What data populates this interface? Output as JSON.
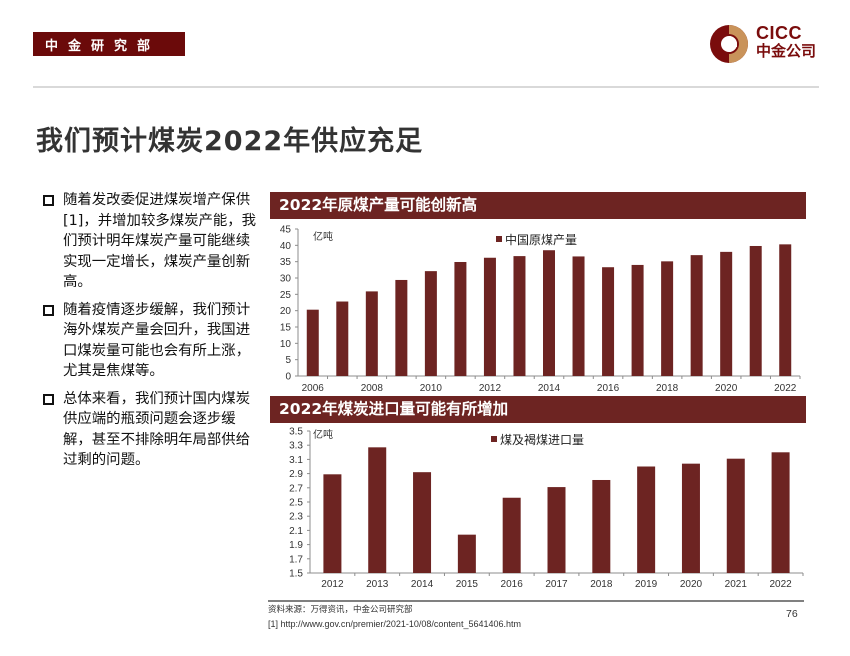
{
  "header": {
    "badge": "中金研究部",
    "logo_en": "CICC",
    "logo_cn": "中金公司"
  },
  "title": "我们预计煤炭2022年供应充足",
  "bullets": [
    "随着发改委促进煤炭增产保供[1]，并增加较多煤炭产能，我们预计明年煤炭产量可能继续实现一定增长，煤炭产量创新高。",
    "随着疫情逐步缓解，我们预计海外煤炭产量会回升，我国进口煤炭量可能也会有所上涨，尤其是焦煤等。",
    "总体来看，我们预计国内煤炭供应端的瓶颈问题会逐步缓解，甚至不排除明年局部供给过剩的问题。"
  ],
  "colors": {
    "brand": "#6b0a0a",
    "bar": "#6d2422",
    "header_bar": "#6d2422"
  },
  "chart_data": [
    {
      "type": "bar",
      "title": "2022年原煤产量可能创新高",
      "unit_label": "亿吨",
      "legend": "中国原煤产量",
      "legend_position": "top-center",
      "categories": [
        "2006",
        "2007",
        "2008",
        "2009",
        "2010",
        "2011",
        "2012",
        "2013",
        "2014",
        "2015",
        "2016",
        "2017",
        "2018",
        "2019",
        "2020",
        "2021",
        "2022"
      ],
      "x_tick_labels": [
        "2006",
        "2008",
        "2010",
        "2012",
        "2014",
        "2016",
        "2018",
        "2020",
        "2022"
      ],
      "values": [
        20.3,
        22.8,
        25.9,
        29.4,
        32.1,
        34.9,
        36.2,
        36.7,
        38.5,
        36.6,
        33.3,
        34.0,
        35.1,
        37.0,
        38.0,
        39.8,
        40.3
      ],
      "ylim": [
        0,
        45
      ],
      "yticks": [
        0,
        5,
        10,
        15,
        20,
        25,
        30,
        35,
        40,
        45
      ],
      "grid": false
    },
    {
      "type": "bar",
      "title": "2022年煤炭进口量可能有所增加",
      "unit_label": "亿吨",
      "legend": "煤及褐煤进口量",
      "legend_position": "top-center",
      "categories": [
        "2012",
        "2013",
        "2014",
        "2015",
        "2016",
        "2017",
        "2018",
        "2019",
        "2020",
        "2021",
        "2022"
      ],
      "x_tick_labels": [
        "2012",
        "2013",
        "2014",
        "2015",
        "2016",
        "2017",
        "2018",
        "2019",
        "2020",
        "2021",
        "2022"
      ],
      "values": [
        2.89,
        3.27,
        2.92,
        2.04,
        2.56,
        2.71,
        2.81,
        3.0,
        3.04,
        3.11,
        3.2
      ],
      "ylim": [
        1.5,
        3.5
      ],
      "yticks": [
        "1.5",
        "1.7",
        "1.9",
        "2.1",
        "2.3",
        "2.5",
        "2.7",
        "2.9",
        "3.1",
        "3.3",
        "3.5"
      ],
      "grid": false
    }
  ],
  "footer": {
    "source": "资料来源：万得资讯，中金公司研究部",
    "footnote": "[1] http://www.gov.cn/premier/2021-10/08/content_5641406.htm",
    "page_number": "76"
  }
}
